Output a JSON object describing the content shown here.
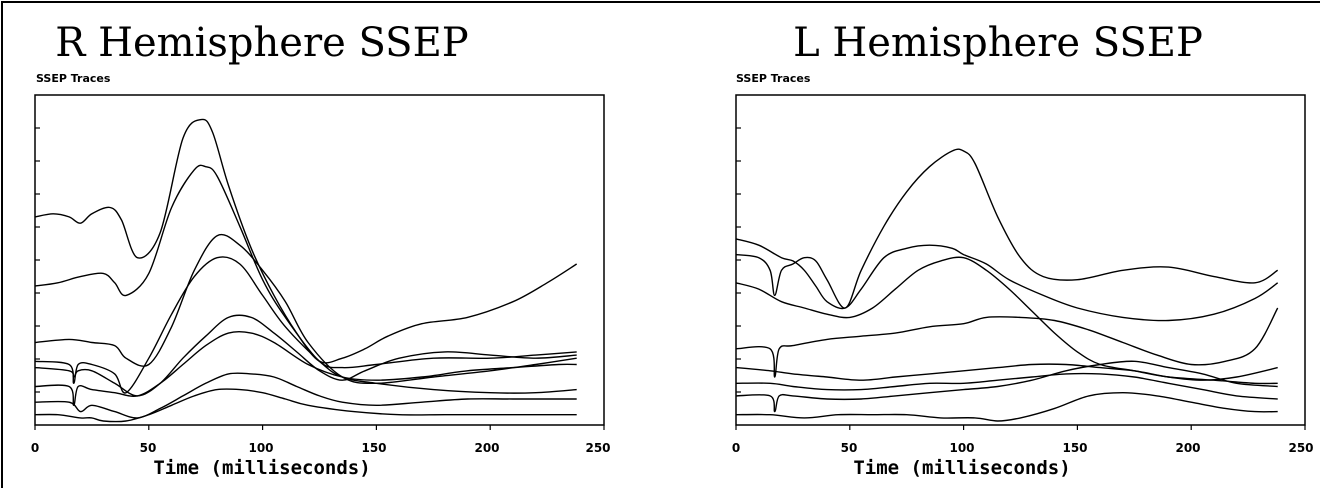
{
  "chart_data": [
    {
      "type": "line",
      "title": "R Hemisphere SSEP",
      "subtitle": "SSEP Traces",
      "xlabel": "Time (milliseconds)",
      "ylabel": "",
      "xlim": [
        0,
        250
      ],
      "ylim": [
        0,
        100
      ],
      "x_ticks": [
        "0",
        "50",
        "100",
        "150",
        "200",
        "250"
      ],
      "y_ticks_labeled": false,
      "grid": false,
      "series": [
        {
          "x": [
            0,
            8,
            15,
            20,
            25,
            33,
            38,
            45,
            55,
            65,
            73,
            78,
            85,
            95,
            105,
            115,
            125,
            135,
            145,
            155,
            170,
            190,
            210,
            225,
            238
          ],
          "y": [
            65,
            66,
            65,
            63,
            66,
            68,
            64,
            52,
            60,
            90,
            96,
            92,
            75,
            55,
            40,
            28,
            19,
            20,
            23,
            27,
            31,
            33,
            38,
            44,
            50
          ]
        },
        {
          "x": [
            0,
            10,
            20,
            30,
            35,
            40,
            50,
            60,
            70,
            75,
            80,
            90,
            100,
            110,
            125,
            135,
            150,
            175,
            200,
            220,
            238
          ],
          "y": [
            43,
            44,
            46,
            47,
            44,
            40,
            47,
            68,
            80,
            81,
            78,
            62,
            45,
            33,
            19,
            17,
            18,
            20,
            20,
            21,
            22
          ]
        },
        {
          "x": [
            0,
            15,
            25,
            35,
            40,
            50,
            60,
            70,
            80,
            90,
            100,
            110,
            120,
            135,
            150,
            175,
            200,
            220,
            238
          ],
          "y": [
            25,
            26,
            25,
            24,
            20,
            18,
            30,
            48,
            59,
            56,
            48,
            38,
            25,
            14,
            12,
            14,
            16,
            18,
            20
          ]
        },
        {
          "x": [
            0,
            15,
            17,
            19,
            25,
            35,
            40,
            50,
            60,
            70,
            80,
            90,
            100,
            110,
            125,
            135,
            150,
            175,
            200,
            220,
            238
          ],
          "y": [
            19,
            18,
            12,
            18,
            18,
            15,
            9,
            20,
            34,
            46,
            52,
            50,
            40,
            30,
            19,
            14,
            12,
            10,
            9,
            9,
            10
          ]
        },
        {
          "x": [
            0,
            15,
            17,
            19,
            25,
            35,
            45,
            55,
            65,
            75,
            85,
            95,
            105,
            115,
            125,
            135,
            145,
            160,
            180,
            200,
            220,
            238
          ],
          "y": [
            17,
            16,
            14,
            16,
            16,
            12,
            8,
            12,
            20,
            27,
            33,
            33,
            28,
            22,
            16,
            13,
            16,
            20,
            22,
            21,
            20,
            21
          ]
        },
        {
          "x": [
            0,
            15,
            17,
            19,
            25,
            35,
            45,
            55,
            65,
            75,
            85,
            95,
            105,
            120,
            135,
            150,
            170,
            190,
            210,
            230,
            238
          ],
          "y": [
            11,
            11,
            5,
            11,
            10,
            9,
            8,
            12,
            18,
            24,
            28,
            28,
            25,
            18,
            14,
            13,
            14,
            16,
            17,
            18,
            18
          ]
        },
        {
          "x": [
            0,
            15,
            20,
            25,
            35,
            45,
            55,
            65,
            75,
            85,
            95,
            105,
            115,
            125,
            135,
            150,
            170,
            190,
            210,
            238
          ],
          "y": [
            6,
            6,
            3,
            5,
            3,
            1,
            4,
            8,
            12,
            15,
            15,
            14,
            11,
            8,
            6,
            5,
            6,
            7,
            7,
            7
          ]
        },
        {
          "x": [
            0,
            10,
            20,
            25,
            30,
            40,
            50,
            60,
            70,
            80,
            90,
            100,
            110,
            120,
            140,
            160,
            180,
            200,
            220,
            238
          ],
          "y": [
            2,
            2,
            1,
            1,
            0,
            0,
            2,
            5,
            8,
            10,
            10,
            9,
            7,
            5,
            3,
            2,
            2,
            2,
            2,
            2
          ]
        }
      ]
    },
    {
      "type": "line",
      "title": "L Hemisphere SSEP",
      "subtitle": "SSEP Traces",
      "xlabel": "Time (milliseconds)",
      "ylabel": "",
      "xlim": [
        0,
        250
      ],
      "ylim": [
        0,
        100
      ],
      "x_ticks": [
        "0",
        "50",
        "100",
        "150",
        "200",
        "250"
      ],
      "y_ticks_labeled": false,
      "grid": false,
      "series": [
        {
          "x": [
            0,
            10,
            15,
            17,
            20,
            25,
            30,
            35,
            40,
            48,
            55,
            65,
            75,
            85,
            95,
            100,
            105,
            115,
            125,
            135,
            150,
            170,
            190,
            210,
            228,
            238
          ],
          "y": [
            53,
            52,
            48,
            40,
            48,
            50,
            52,
            51,
            45,
            36,
            48,
            62,
            73,
            81,
            86,
            86,
            82,
            65,
            52,
            46,
            45,
            48,
            49,
            46,
            44,
            48
          ]
        },
        {
          "x": [
            0,
            10,
            20,
            25,
            30,
            35,
            40,
            48,
            55,
            65,
            75,
            85,
            95,
            100,
            110,
            120,
            135,
            150,
            170,
            190,
            210,
            228,
            238
          ],
          "y": [
            58,
            56,
            52,
            51,
            48,
            43,
            38,
            36,
            42,
            52,
            55,
            56,
            55,
            53,
            50,
            45,
            40,
            36,
            33,
            32,
            34,
            39,
            44
          ]
        },
        {
          "x": [
            0,
            10,
            20,
            30,
            40,
            50,
            60,
            70,
            80,
            90,
            100,
            110,
            120,
            130,
            140,
            150,
            160,
            175,
            190,
            210,
            228,
            238
          ],
          "y": [
            44,
            42,
            38,
            36,
            34,
            33,
            36,
            42,
            48,
            51,
            52,
            48,
            42,
            35,
            28,
            22,
            18,
            16,
            14,
            13,
            12,
            12
          ]
        },
        {
          "x": [
            0,
            15,
            17,
            19,
            25,
            40,
            55,
            70,
            85,
            100,
            110,
            125,
            140,
            155,
            170,
            185,
            200,
            215,
            228,
            238
          ],
          "y": [
            23,
            23,
            14,
            23,
            24,
            26,
            27,
            28,
            30,
            31,
            33,
            33,
            32,
            29,
            25,
            21,
            18,
            19,
            23,
            36
          ]
        },
        {
          "x": [
            0,
            15,
            25,
            40,
            55,
            70,
            85,
            100,
            115,
            130,
            145,
            160,
            175,
            190,
            205,
            220,
            238
          ],
          "y": [
            17,
            16,
            15,
            14,
            13,
            14,
            15,
            16,
            17,
            18,
            18,
            17,
            16,
            14,
            13,
            14,
            17
          ]
        },
        {
          "x": [
            0,
            15,
            25,
            40,
            55,
            70,
            85,
            100,
            115,
            130,
            145,
            160,
            175,
            190,
            205,
            220,
            238
          ],
          "y": [
            12,
            12,
            11,
            10,
            10,
            11,
            12,
            12,
            13,
            14,
            15,
            15,
            14,
            12,
            10,
            8,
            7
          ]
        },
        {
          "x": [
            0,
            15,
            17,
            19,
            25,
            40,
            55,
            70,
            85,
            100,
            115,
            130,
            145,
            160,
            175,
            190,
            205,
            220,
            238
          ],
          "y": [
            8,
            8,
            3,
            8,
            8,
            7,
            7,
            8,
            9,
            10,
            11,
            13,
            16,
            18,
            19,
            17,
            15,
            12,
            11
          ]
        },
        {
          "x": [
            0,
            15,
            30,
            45,
            60,
            75,
            90,
            105,
            115,
            125,
            140,
            155,
            170,
            185,
            200,
            215,
            228,
            238
          ],
          "y": [
            2,
            2,
            1,
            2,
            2,
            2,
            1,
            1,
            0,
            1,
            4,
            8,
            9,
            8,
            6,
            4,
            3,
            3
          ]
        }
      ]
    }
  ]
}
